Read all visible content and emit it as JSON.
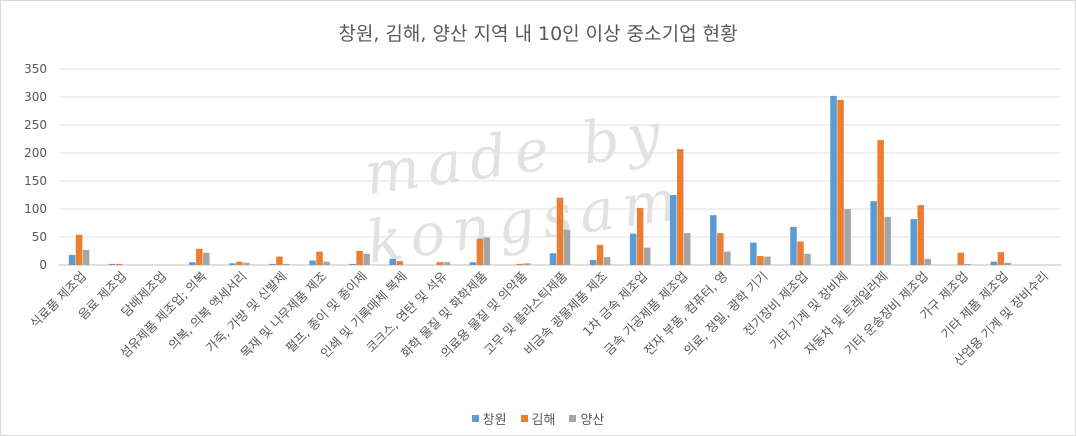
{
  "chart_data": {
    "type": "bar",
    "title": "창원, 김해, 양산 지역 내 10인 이상 중소기업 현황",
    "xlabel": "",
    "ylabel": "",
    "ylim": [
      0,
      350
    ],
    "yticks": [
      0,
      50,
      100,
      150,
      200,
      250,
      300,
      350
    ],
    "grid": true,
    "legend_position": "bottom",
    "watermark": "made by kongsam",
    "categories": [
      "식료품 제조업",
      "음료 제조업",
      "담배제조업",
      "섬유제품 제조업; 의복",
      "의복, 의복 액세서리",
      "가죽, 가방 및 신발제",
      "목재 및 나무제품 제조",
      "펄프, 종이 및 종이제",
      "인쇄 및 기록매체 복제",
      "코크스, 연탄 및 석유",
      "화학 물질 및 화학제품",
      "의료용 물질 및 의약품",
      "고무 및 플라스틱제품",
      "비금속 광물제품 제조",
      "1차 금속 제조업",
      "금속 가공제품 제조업",
      "전자 부품, 컴퓨터, 영",
      "의료, 정밀, 광학 기기",
      "전기장비 제조업",
      "기타 기계 및 장비제",
      "자동차 및 트레일러제",
      "기타 운송장비 제조업",
      "가구 제조업",
      "기타 제품 제조업",
      "산업용 기계 및 장비수리"
    ],
    "series": [
      {
        "name": "창원",
        "color": "#5B9BD5",
        "values": [
          18,
          2,
          0,
          5,
          3,
          2,
          8,
          2,
          11,
          0,
          5,
          0,
          21,
          9,
          56,
          125,
          89,
          40,
          68,
          302,
          114,
          82,
          0,
          6,
          0
        ]
      },
      {
        "name": "김해",
        "color": "#ED7D31",
        "values": [
          54,
          2,
          0,
          29,
          6,
          15,
          24,
          25,
          7,
          5,
          47,
          2,
          120,
          36,
          102,
          207,
          57,
          16,
          42,
          295,
          223,
          107,
          22,
          23,
          0
        ]
      },
      {
        "name": "양산",
        "color": "#A5A5A5",
        "values": [
          27,
          0,
          0,
          22,
          4,
          2,
          6,
          20,
          0,
          5,
          49,
          3,
          63,
          14,
          31,
          57,
          24,
          15,
          20,
          100,
          86,
          11,
          2,
          4,
          0
        ]
      }
    ]
  }
}
